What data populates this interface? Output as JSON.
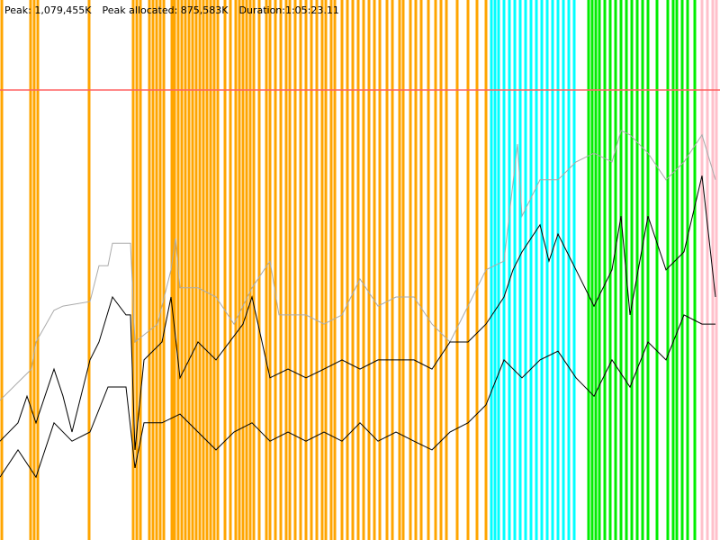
{
  "chart_data": {
    "type": "line",
    "header": [
      "Peak: 1,079,455K",
      "Peak allocated: 875,583K",
      "Duration:1:05:23.11"
    ],
    "peak_line": {
      "value": 1079455,
      "color": "#ff6060"
    },
    "xlim": [
      0,
      800
    ],
    "ylim": [
      0,
      1295346
    ],
    "events": [
      {
        "color": "#ffa500",
        "x": [
          2,
          34,
          38,
          42,
          99,
          148,
          152,
          156,
          166,
          170,
          174,
          178,
          182,
          191,
          194,
          198,
          202,
          206,
          210,
          214,
          218,
          222,
          226,
          230,
          234,
          238,
          242,
          250,
          256,
          262,
          266,
          270,
          274,
          278,
          282,
          288,
          296,
          300,
          306,
          312,
          318,
          322,
          328,
          334,
          340,
          346,
          352,
          358,
          362,
          368,
          372,
          380,
          386,
          392,
          398,
          404,
          410,
          416,
          422,
          430,
          436,
          444,
          448,
          456,
          462,
          468,
          476,
          484,
          490,
          496,
          508,
          520,
          530,
          540
        ]
      },
      {
        "color": "#00ffff",
        "x": [
          546,
          550,
          554,
          560,
          566,
          572,
          578,
          584,
          590,
          596,
          602,
          608,
          614,
          620,
          626,
          632,
          638
        ]
      },
      {
        "color": "#00ee00",
        "x": [
          654,
          658,
          662,
          666,
          672,
          678,
          684,
          690,
          696,
          702,
          708,
          714,
          720,
          730,
          742,
          748,
          752,
          758,
          764,
          772
        ]
      },
      {
        "color": "#ffc0cb",
        "x": [
          780,
          786,
          792,
          796
        ]
      }
    ],
    "series": [
      {
        "color": "#aaaaaa",
        "x": [
          0,
          20,
          35,
          40,
          60,
          70,
          100,
          110,
          120,
          125,
          145,
          150,
          175,
          190,
          195,
          200,
          220,
          240,
          260,
          280,
          300,
          310,
          340,
          360,
          380,
          400,
          420,
          440,
          460,
          480,
          500,
          520,
          540,
          560,
          575,
          580,
          600,
          620,
          640,
          660,
          680,
          690,
          700,
          720,
          740,
          760,
          780,
          795
        ],
        "values": [
          335000,
          378000,
          410000,
          475000,
          551000,
          561000,
          572000,
          658000,
          658000,
          712000,
          712000,
          475000,
          518000,
          648000,
          723000,
          605000,
          605000,
          583000,
          518000,
          605000,
          669000,
          540000,
          540000,
          518000,
          540000,
          626000,
          561000,
          583000,
          583000,
          518000,
          475000,
          561000,
          648000,
          669000,
          950000,
          777000,
          864000,
          864000,
          907000,
          928000,
          907000,
          982000,
          972000,
          928000,
          864000,
          907000,
          972000,
          864000
        ]
      },
      {
        "color": "#000000",
        "x": [
          0,
          20,
          30,
          40,
          60,
          70,
          80,
          100,
          110,
          125,
          140,
          145,
          150,
          160,
          180,
          190,
          200,
          220,
          240,
          270,
          280,
          300,
          320,
          340,
          360,
          380,
          400,
          420,
          440,
          460,
          480,
          500,
          520,
          540,
          560,
          570,
          580,
          600,
          610,
          620,
          640,
          660,
          680,
          690,
          700,
          720,
          740,
          760,
          780,
          795
        ],
        "values": [
          237000,
          281000,
          345000,
          281000,
          410000,
          345000,
          259000,
          432000,
          475000,
          583000,
          540000,
          540000,
          216000,
          432000,
          475000,
          583000,
          389000,
          475000,
          432000,
          518000,
          583000,
          389000,
          410000,
          389000,
          410000,
          432000,
          410000,
          432000,
          432000,
          432000,
          410000,
          475000,
          475000,
          518000,
          583000,
          648000,
          691000,
          756000,
          669000,
          734000,
          648000,
          561000,
          648000,
          777000,
          540000,
          777000,
          648000,
          691000,
          874000,
          583000
        ]
      },
      {
        "color": "#000000",
        "x": [
          0,
          20,
          40,
          60,
          80,
          100,
          120,
          140,
          150,
          160,
          180,
          200,
          220,
          240,
          260,
          280,
          300,
          320,
          340,
          360,
          380,
          400,
          420,
          440,
          460,
          480,
          500,
          520,
          540,
          560,
          580,
          600,
          620,
          640,
          660,
          680,
          700,
          720,
          740,
          760,
          780,
          795
        ],
        "values": [
          151000,
          216000,
          151000,
          281000,
          237000,
          259000,
          367000,
          367000,
          173000,
          281000,
          281000,
          302000,
          259000,
          216000,
          259000,
          281000,
          237000,
          259000,
          237000,
          259000,
          237000,
          281000,
          237000,
          259000,
          237000,
          216000,
          259000,
          281000,
          324000,
          432000,
          389000,
          432000,
          453000,
          389000,
          345000,
          432000,
          367000,
          475000,
          432000,
          540000,
          518000,
          518000
        ]
      }
    ]
  }
}
